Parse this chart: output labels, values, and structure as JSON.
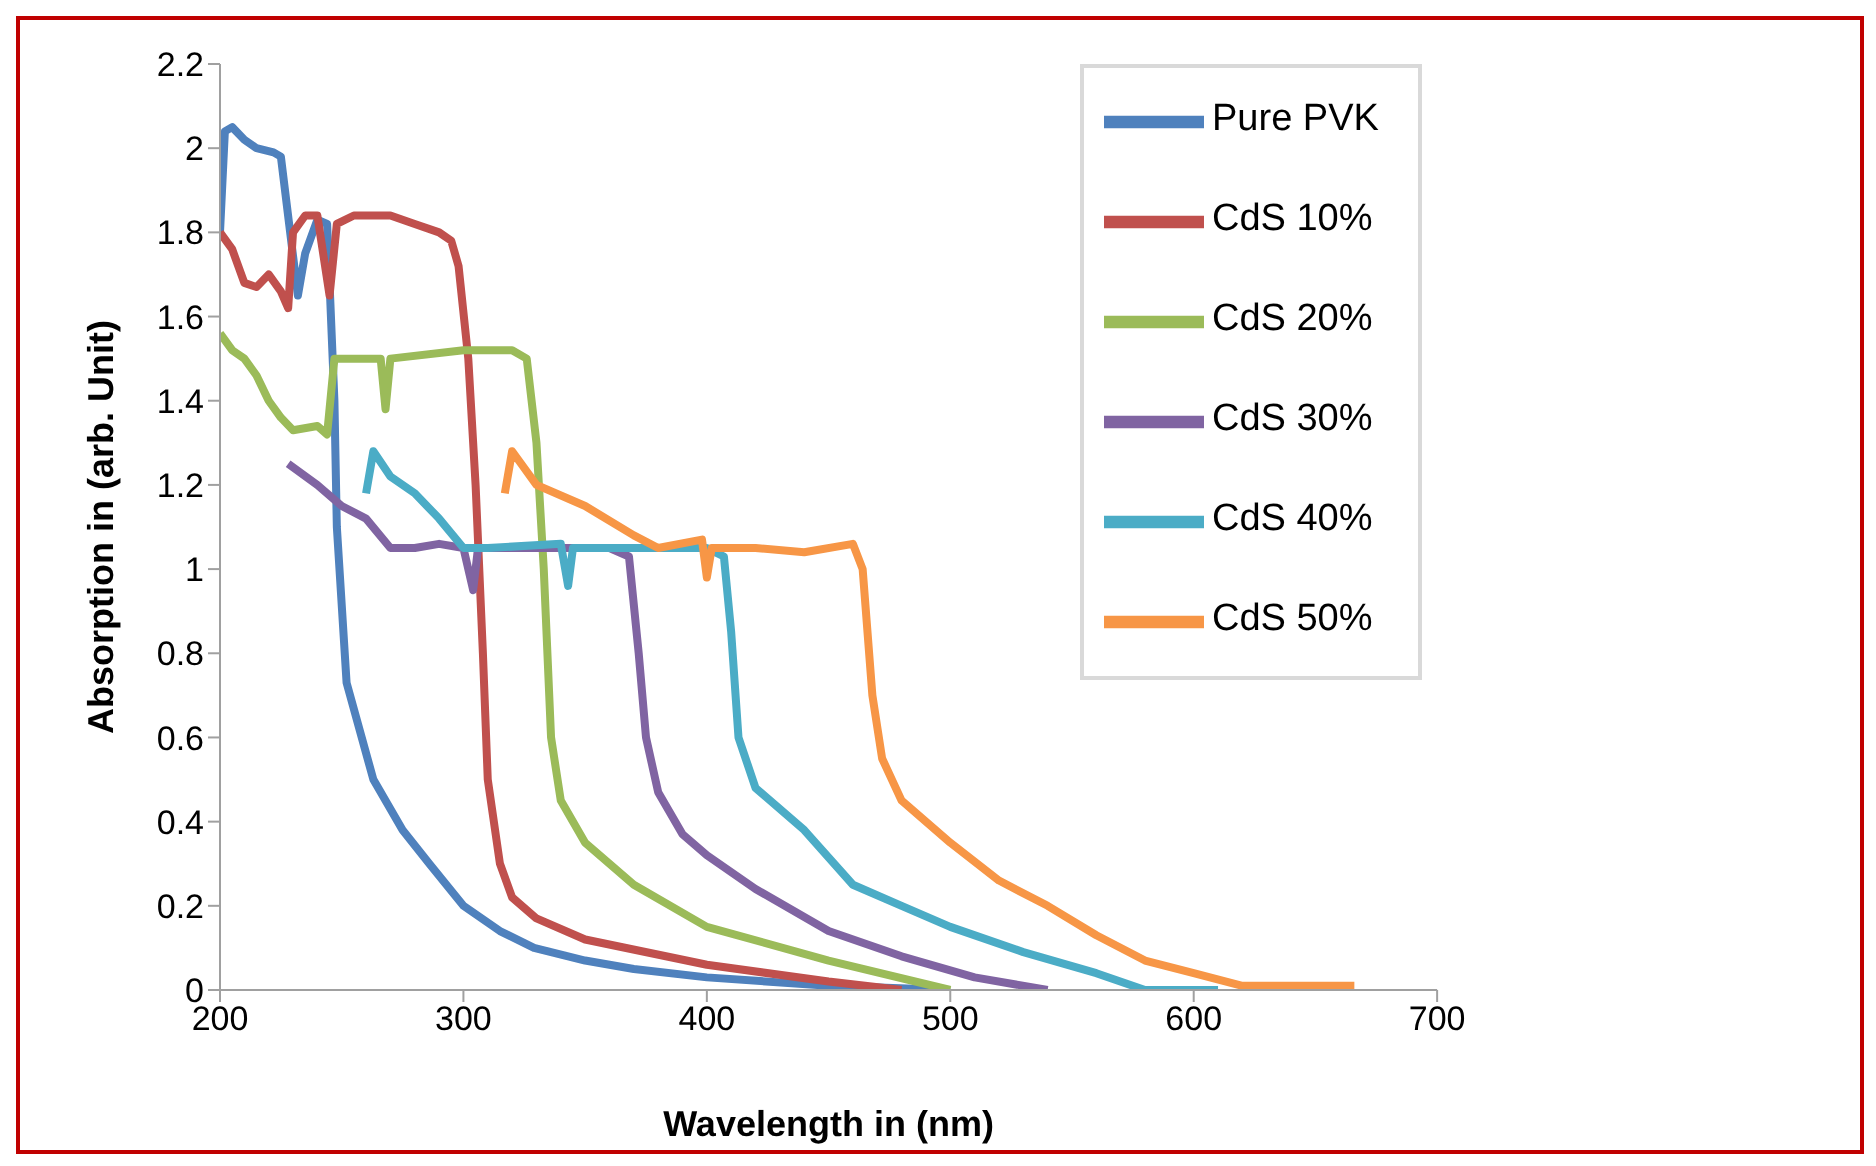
{
  "chart_data": {
    "type": "line",
    "xlabel": "Wavelength in (nm)",
    "ylabel": "Absorption in (arb. Unit)",
    "xlim": [
      200,
      700
    ],
    "xticks": [
      200,
      300,
      400,
      500,
      600,
      700
    ],
    "ylim": [
      0,
      2.2
    ],
    "yticks": [
      0,
      0.2,
      0.4,
      0.6,
      0.8,
      1,
      1.2,
      1.4,
      1.6,
      1.8,
      2,
      2.2
    ],
    "grid": false,
    "legend": "top right",
    "marker": "none",
    "line_style": "solid",
    "series": [
      {
        "name": "Pure PVK",
        "color": "#4f81bd",
        "x": [
          200,
          202,
          205,
          210,
          215,
          222,
          225,
          232,
          235,
          240,
          244,
          247,
          248,
          252,
          263,
          275,
          286,
          300,
          315,
          329,
          350,
          370,
          400,
          450,
          500
        ],
        "values": [
          1.8,
          2.04,
          2.05,
          2.02,
          2,
          1.99,
          1.98,
          1.65,
          1.75,
          1.83,
          1.82,
          1.4,
          1.1,
          0.73,
          0.5,
          0.38,
          0.3,
          0.2,
          0.14,
          0.1,
          0.07,
          0.05,
          0.03,
          0.01,
          0
        ]
      },
      {
        "name": "CdS 10%",
        "color": "#c0504d",
        "x": [
          200,
          205,
          210,
          215,
          220,
          225,
          228,
          230,
          235,
          240,
          245,
          248,
          255,
          270,
          280,
          290,
          295,
          298,
          302,
          305,
          308,
          310,
          315,
          320,
          330,
          350,
          400,
          450,
          480
        ],
        "values": [
          1.8,
          1.76,
          1.68,
          1.67,
          1.7,
          1.66,
          1.62,
          1.8,
          1.84,
          1.84,
          1.65,
          1.82,
          1.84,
          1.84,
          1.82,
          1.8,
          1.78,
          1.72,
          1.5,
          1.2,
          0.8,
          0.5,
          0.3,
          0.22,
          0.17,
          0.12,
          0.06,
          0.02,
          0
        ]
      },
      {
        "name": "CdS 20%",
        "color": "#9bbb59",
        "x": [
          200,
          205,
          210,
          215,
          220,
          225,
          230,
          240,
          244,
          247,
          260,
          266,
          268,
          270,
          300,
          320,
          326,
          330,
          333,
          336,
          340,
          350,
          370,
          400,
          450,
          500
        ],
        "values": [
          1.56,
          1.52,
          1.5,
          1.46,
          1.4,
          1.36,
          1.33,
          1.34,
          1.32,
          1.5,
          1.5,
          1.5,
          1.38,
          1.5,
          1.52,
          1.52,
          1.5,
          1.3,
          1,
          0.6,
          0.45,
          0.35,
          0.25,
          0.15,
          0.07,
          0
        ]
      },
      {
        "name": "CdS 30%",
        "color": "#8064a2",
        "x": [
          228,
          240,
          250,
          260,
          270,
          280,
          290,
          300,
          304,
          306,
          330,
          360,
          368,
          372,
          375,
          380,
          390,
          400,
          420,
          450,
          480,
          510,
          540
        ],
        "values": [
          1.25,
          1.2,
          1.15,
          1.12,
          1.05,
          1.05,
          1.06,
          1.05,
          0.95,
          1.05,
          1.05,
          1.05,
          1.03,
          0.8,
          0.6,
          0.47,
          0.37,
          0.32,
          0.24,
          0.14,
          0.08,
          0.03,
          0
        ]
      },
      {
        "name": "CdS 40%",
        "color": "#4bacc6",
        "x": [
          260,
          263,
          270,
          280,
          290,
          300,
          310,
          340,
          343,
          345,
          380,
          400,
          407,
          410,
          413,
          420,
          440,
          460,
          480,
          500,
          530,
          560,
          580,
          610
        ],
        "values": [
          1.18,
          1.28,
          1.22,
          1.18,
          1.12,
          1.05,
          1.05,
          1.06,
          0.96,
          1.05,
          1.05,
          1.05,
          1.03,
          0.85,
          0.6,
          0.48,
          0.38,
          0.25,
          0.2,
          0.15,
          0.09,
          0.04,
          0,
          0
        ]
      },
      {
        "name": "CdS 50%",
        "color": "#f79646",
        "x": [
          317,
          320,
          330,
          350,
          370,
          380,
          398,
          400,
          402,
          420,
          440,
          460,
          464,
          468,
          472,
          480,
          500,
          520,
          540,
          560,
          580,
          600,
          620,
          640,
          666
        ],
        "values": [
          1.18,
          1.28,
          1.2,
          1.15,
          1.08,
          1.05,
          1.07,
          0.98,
          1.05,
          1.05,
          1.04,
          1.06,
          1,
          0.7,
          0.55,
          0.45,
          0.35,
          0.26,
          0.2,
          0.13,
          0.07,
          0.04,
          0.01,
          0.01,
          0.01
        ]
      }
    ]
  }
}
